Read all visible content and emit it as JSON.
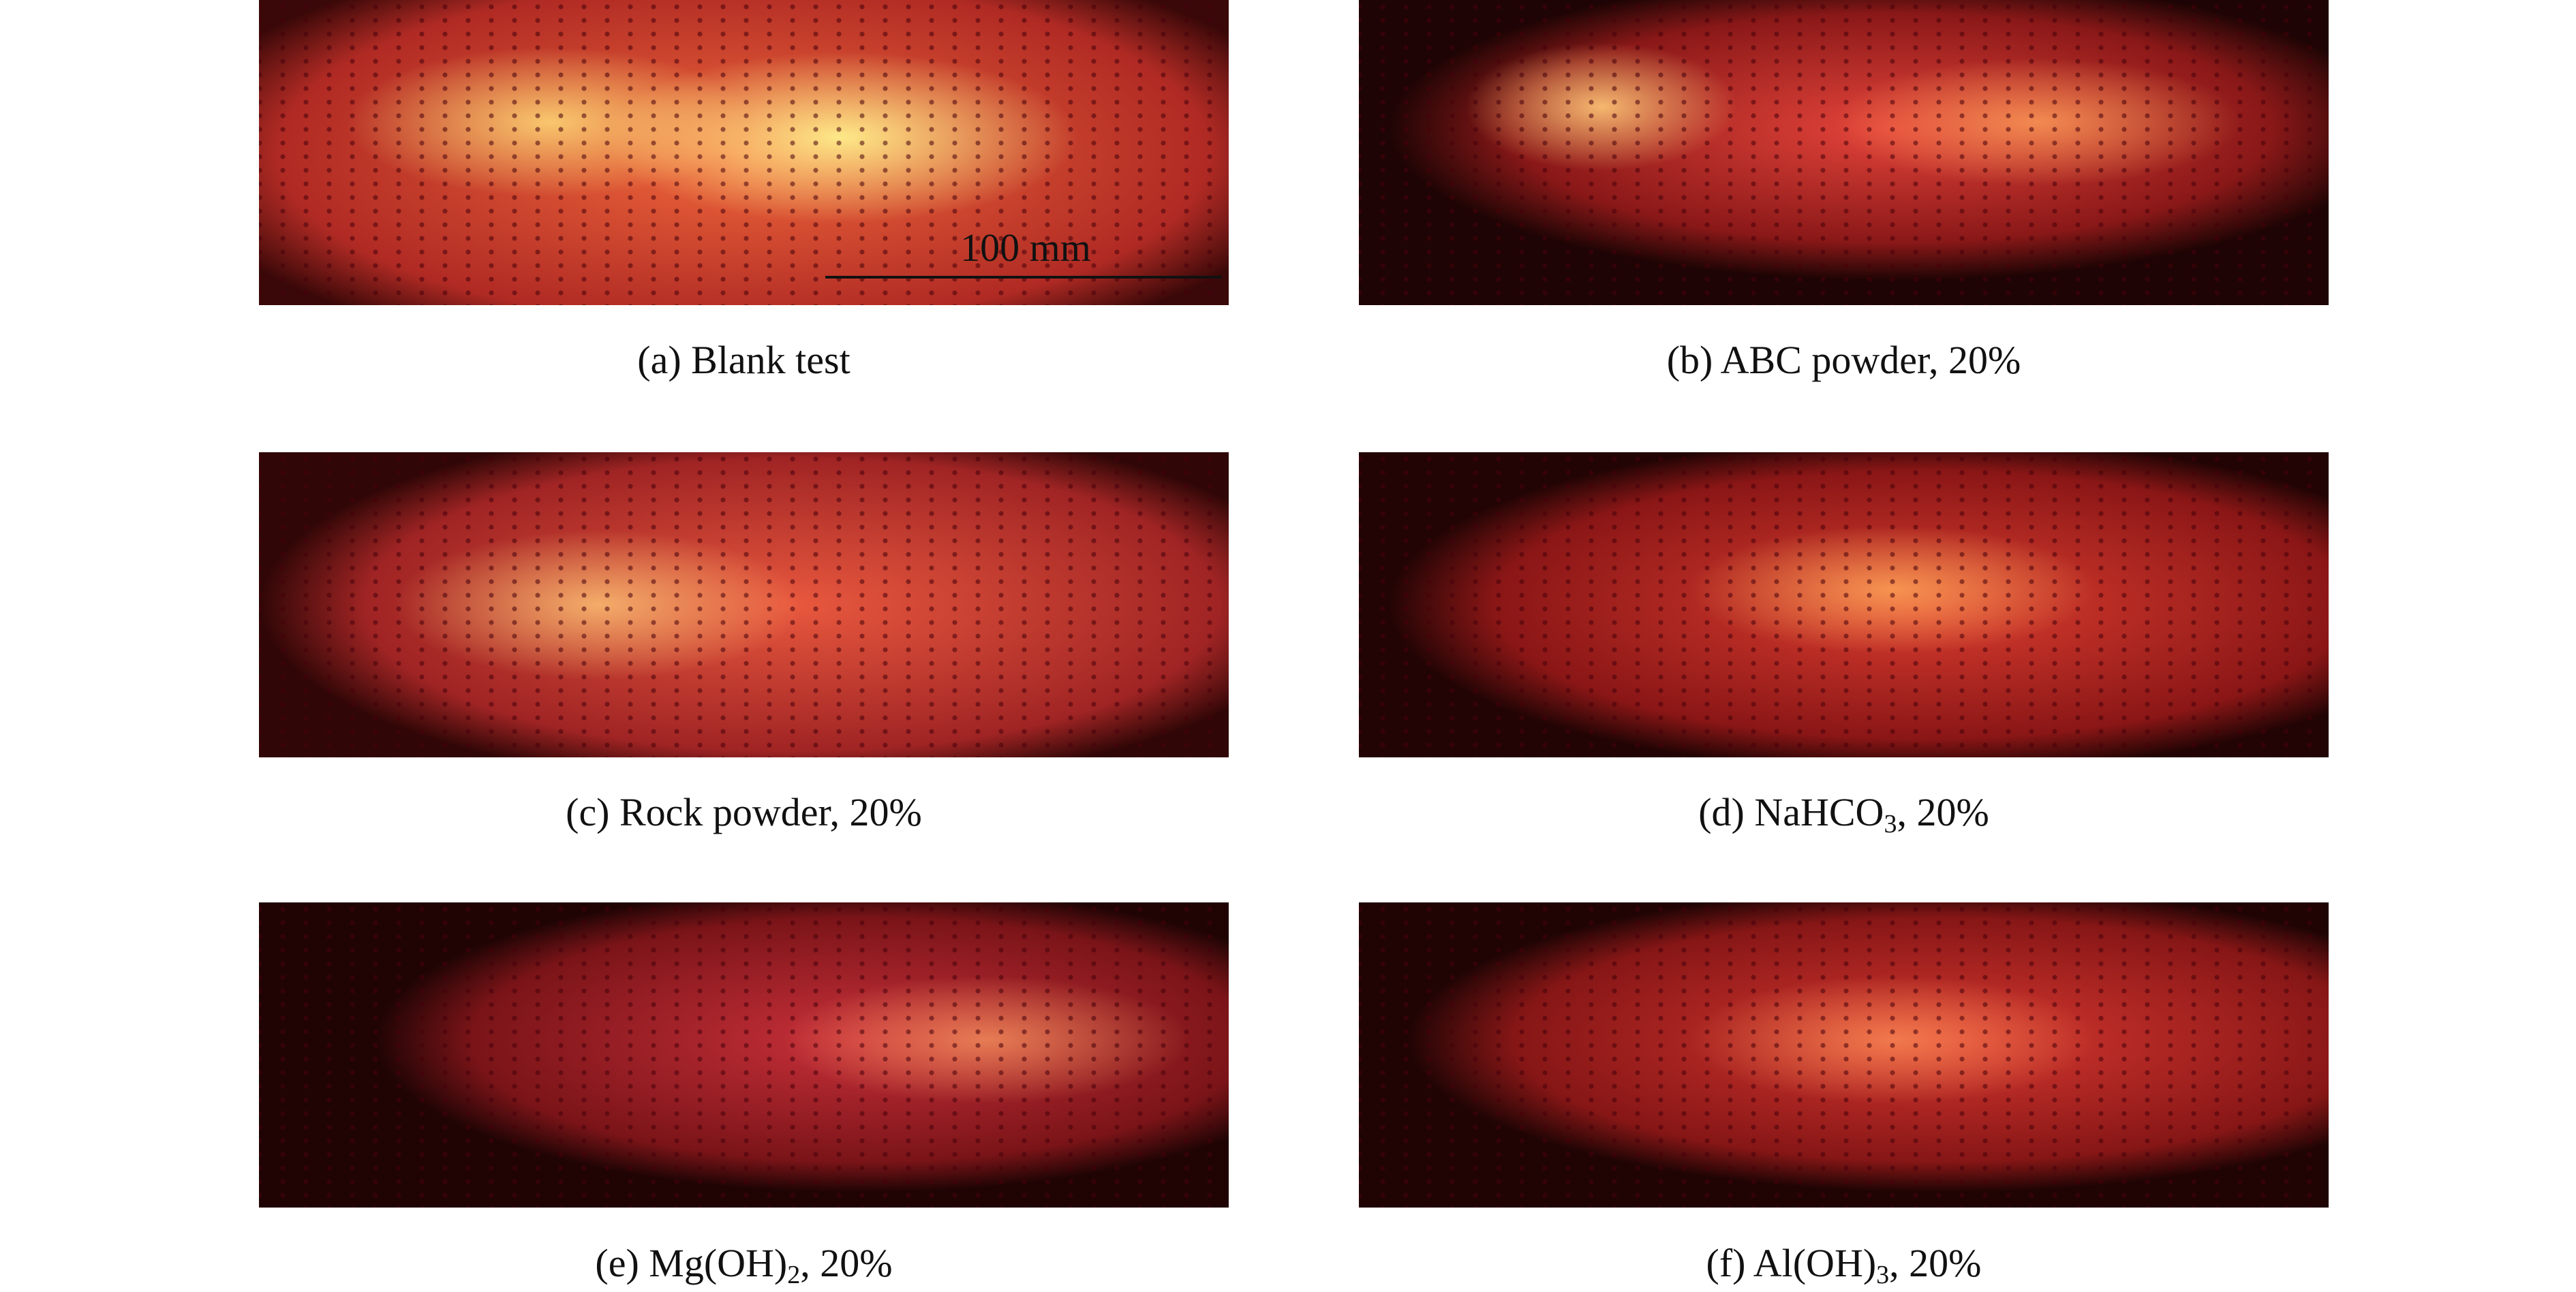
{
  "panels": [
    {
      "caption": [
        {
          "text": "(a) Blank test"
        }
      ]
    },
    {
      "caption": [
        {
          "text": "(b) ABC powder, 20%"
        }
      ]
    },
    {
      "caption": [
        {
          "text": "(c) Rock powder, 20%"
        }
      ]
    },
    {
      "caption": [
        {
          "text": "(d) NaHCO"
        },
        {
          "text": "3",
          "style": "subscript"
        },
        {
          "text": ", 20%"
        }
      ]
    },
    {
      "caption": [
        {
          "text": "(e) Mg(OH)"
        },
        {
          "text": "2",
          "style": "subscript"
        },
        {
          "text": ", 20%"
        }
      ]
    },
    {
      "caption": [
        {
          "text": "(f) Al(OH)"
        },
        {
          "text": "3",
          "style": "subscript"
        },
        {
          "text": ", 20%"
        }
      ]
    }
  ],
  "scale_bar": {
    "label": "100 mm"
  }
}
